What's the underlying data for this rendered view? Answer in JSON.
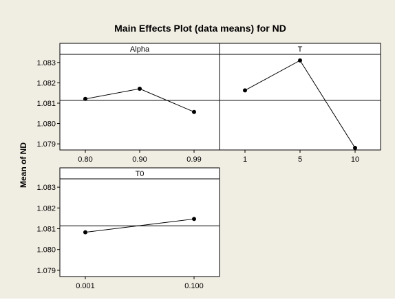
{
  "chart_data": {
    "type": "line",
    "title": "Main Effects Plot (data means) for ND",
    "ylabel": "Mean of ND",
    "ylim": [
      1.0787,
      1.0834
    ],
    "yticks": [
      "1.083",
      "1.082",
      "1.081",
      "1.080",
      "1.079"
    ],
    "overall_mean": 1.08114,
    "panels": [
      {
        "name": "Alpha",
        "categories": [
          "0.80",
          "0.90",
          "0.99"
        ],
        "values": [
          1.08121,
          1.08171,
          1.08057
        ]
      },
      {
        "name": "T",
        "categories": [
          "1",
          "5",
          "10"
        ],
        "values": [
          1.08163,
          1.0831,
          1.0788
        ]
      },
      {
        "name": "T0",
        "categories": [
          "0.001",
          "0.100"
        ],
        "values": [
          1.08083,
          1.08147
        ]
      }
    ],
    "colors": {
      "background": "#f0ede2",
      "panel": "#ffffff",
      "ink": "#000000"
    }
  }
}
